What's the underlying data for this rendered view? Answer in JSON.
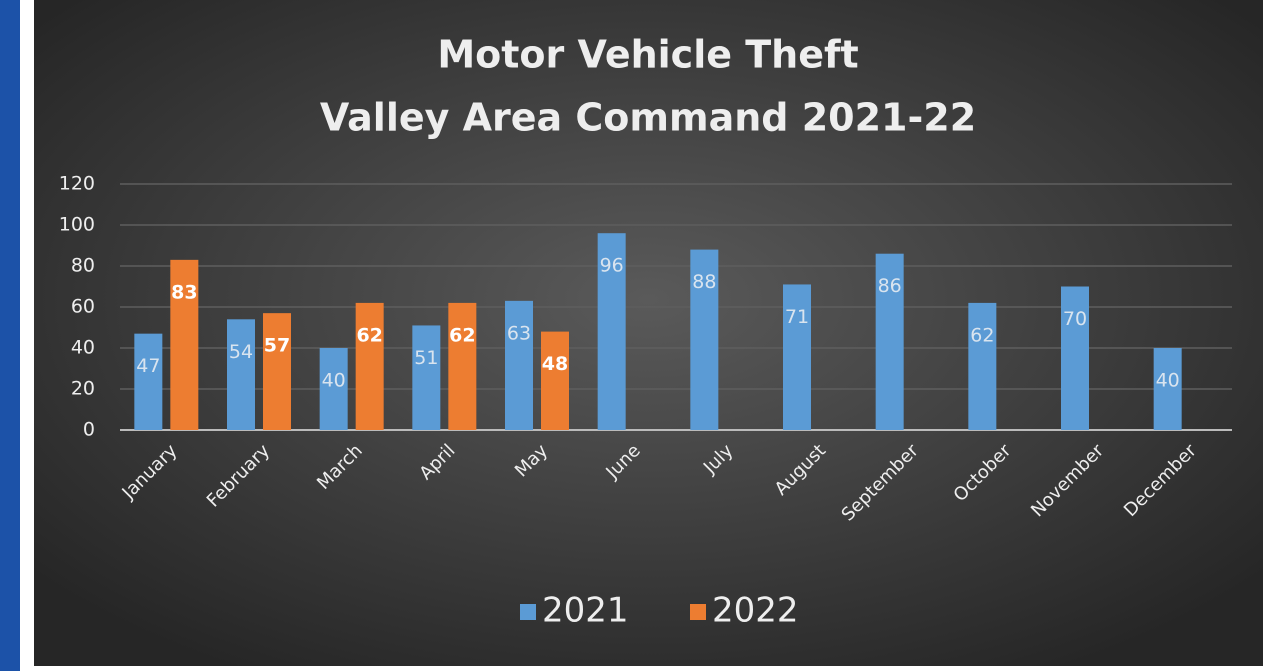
{
  "chart_data": {
    "type": "bar",
    "title": "Motor Vehicle Theft",
    "subtitle": "Valley Area Command 2021-22",
    "categories": [
      "January",
      "February",
      "March",
      "April",
      "May",
      "June",
      "July",
      "August",
      "September",
      "October",
      "November",
      "December"
    ],
    "series": [
      {
        "name": "2021",
        "color": "#5b9bd5",
        "values": [
          47,
          54,
          40,
          51,
          63,
          96,
          88,
          71,
          86,
          62,
          70,
          40
        ]
      },
      {
        "name": "2022",
        "color": "#ed7d31",
        "values": [
          83,
          57,
          62,
          62,
          48,
          null,
          null,
          null,
          null,
          null,
          null,
          null
        ]
      }
    ],
    "ylim": [
      0,
      120
    ],
    "yticks": [
      0,
      20,
      40,
      60,
      80,
      100,
      120
    ],
    "grid": true,
    "legend": "bottom"
  }
}
